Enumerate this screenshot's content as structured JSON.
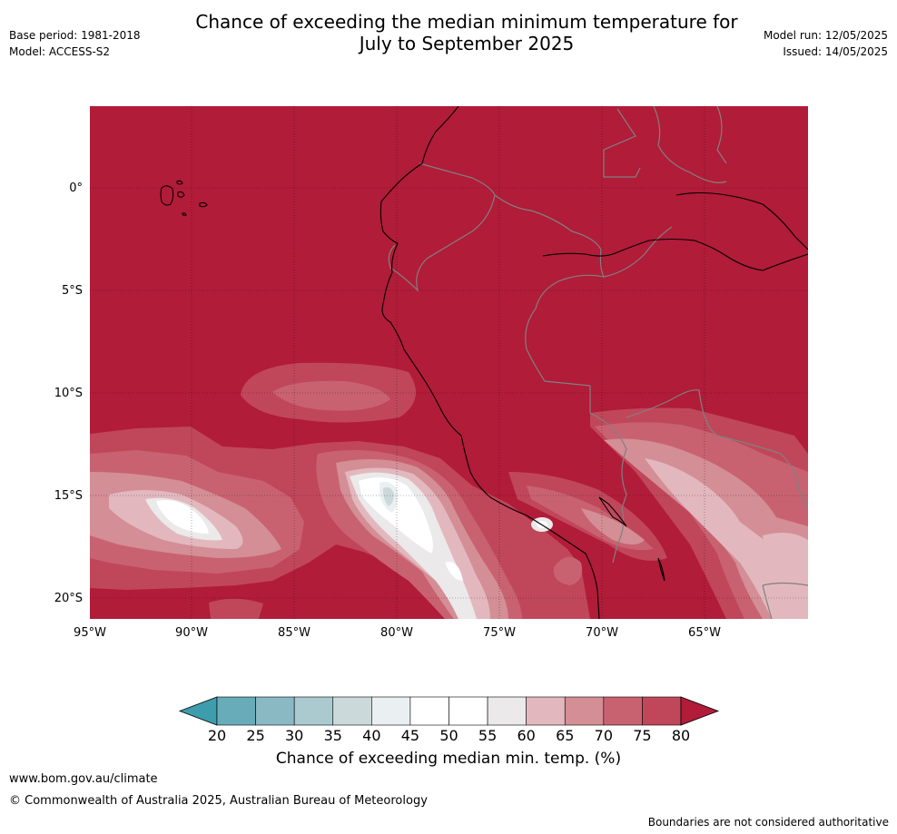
{
  "title": {
    "line1": "Chance of exceeding the median minimum temperature for",
    "line2": "July to September 2025"
  },
  "meta": {
    "base_period": "Base period: 1981-2018",
    "model": "Model: ACCESS-S2",
    "model_run": "Model run: 12/05/2025",
    "issued": "Issued: 14/05/2025"
  },
  "map": {
    "lat_labels": [
      "0°",
      "5°S",
      "10°S",
      "15°S",
      "20°S"
    ],
    "lon_labels": [
      "95°W",
      "90°W",
      "85°W",
      "80°W",
      "75°W",
      "70°W",
      "65°W"
    ],
    "colors": {
      "ocean_base": "#b11c39",
      "coast": "#000000",
      "borders": "#808080"
    }
  },
  "colorbar": {
    "ticks": [
      "20",
      "25",
      "30",
      "35",
      "40",
      "45",
      "50",
      "55",
      "60",
      "65",
      "70",
      "75",
      "80"
    ],
    "colors": [
      "#3e9dad",
      "#68abb9",
      "#8ab9c4",
      "#aacacf",
      "#cbd9da",
      "#eaf0f1",
      "#ffffff",
      "#ffffff",
      "#ebe9ea",
      "#e2b8be",
      "#d48e96",
      "#c96270",
      "#c0475a",
      "#b11c39"
    ],
    "label": "Chance of exceeding median min. temp. (%)"
  },
  "footer": {
    "url": "www.bom.gov.au/climate",
    "copyright": "© Commonwealth of Australia 2025, Australian Bureau of Meteorology",
    "note": "Boundaries are not considered authoritative"
  }
}
